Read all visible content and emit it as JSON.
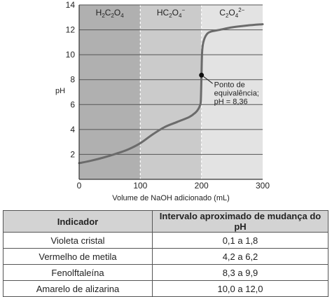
{
  "chart_data": {
    "type": "line",
    "xlabel": "Volume de NaOH adicionado (mL)",
    "ylabel": "pH",
    "xlim": [
      0,
      300
    ],
    "ylim": [
      0,
      14
    ],
    "x_ticks": [
      "0",
      "100",
      "200",
      "300"
    ],
    "y_ticks": [
      "2",
      "4",
      "6",
      "8",
      "10",
      "12",
      "14"
    ],
    "grid": "horizontal",
    "regions": [
      {
        "label_main": "H",
        "label_sub1": "2",
        "label_mid": "C",
        "label_sub2": "2",
        "label_end": "O",
        "label_sub3": "4",
        "label_sup": "",
        "x_from": 0,
        "x_to": 100,
        "color": "#b0b0b0"
      },
      {
        "label_main": "H",
        "label_sub1": "",
        "label_mid": "C",
        "label_sub2": "2",
        "label_end": "O",
        "label_sub3": "4",
        "label_sup": "−",
        "x_from": 100,
        "x_to": 200,
        "color": "#cbcbcb"
      },
      {
        "label_main": "",
        "label_sub1": "",
        "label_mid": "C",
        "label_sub2": "2",
        "label_end": "O",
        "label_sub3": "4",
        "label_sup": "2−",
        "x_from": 200,
        "x_to": 300,
        "color": "#e3e3e3"
      }
    ],
    "series": [
      {
        "x": [
          0,
          20,
          40,
          60,
          80,
          100,
          120,
          140,
          160,
          180,
          190,
          195,
          198,
          199,
          200,
          201,
          203,
          208,
          215,
          230,
          250,
          275,
          300
        ],
        "y": [
          1.3,
          1.5,
          1.75,
          2.05,
          2.4,
          2.9,
          3.6,
          4.2,
          4.6,
          5.0,
          5.35,
          5.65,
          6.0,
          6.4,
          8.36,
          10.2,
          11.0,
          11.6,
          11.85,
          12.0,
          12.2,
          12.35,
          12.45
        ]
      }
    ],
    "marker": {
      "x": 200,
      "y": 8.36
    },
    "annotation_lines": [
      "Ponto de",
      "equivalência;",
      "pH = 8,36"
    ]
  },
  "table": {
    "headers": [
      "Indicador",
      "Intervalo aproximado de mudança do pH"
    ],
    "rows": [
      [
        "Violeta cristal",
        "0,1 a 1,8"
      ],
      [
        "Vermelho de metila",
        "4,2 a 6,2"
      ],
      [
        "Fenolftaleína",
        "8,3 a 9,9"
      ],
      [
        "Amarelo de alizarina",
        "10,0 a 12,0"
      ]
    ]
  },
  "colors": {
    "curve": "#6b6b6b",
    "grid": "#555555",
    "marker": "#111111"
  }
}
